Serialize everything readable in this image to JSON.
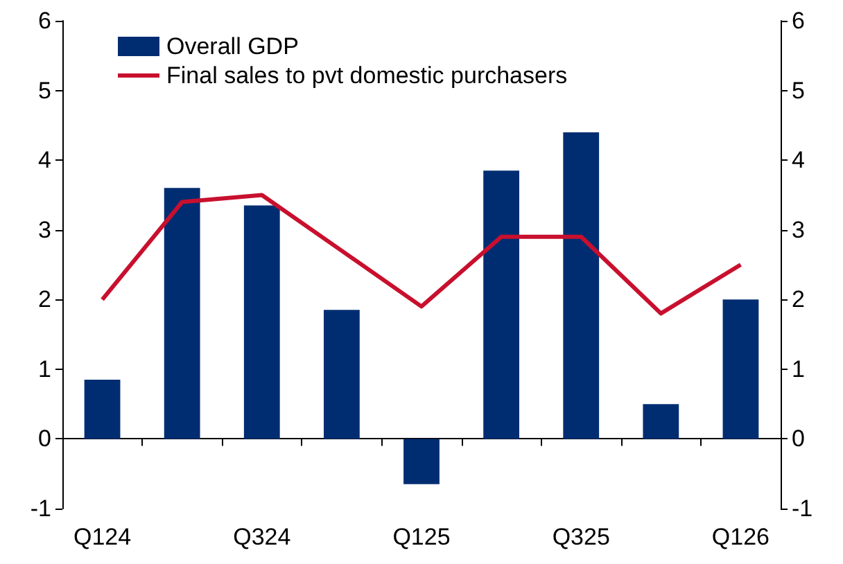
{
  "chart_data": {
    "type": "bar",
    "categories": [
      "Q124",
      null,
      "Q324",
      null,
      "Q125",
      null,
      "Q325",
      null,
      "Q126"
    ],
    "series": [
      {
        "name": "Overall GDP",
        "color": "#002d72",
        "values": [
          0.85,
          3.6,
          3.35,
          1.85,
          -0.65,
          3.85,
          4.4,
          0.5,
          2.0
        ]
      },
      {
        "name": "Final sales to pvt domestic purchasers",
        "type": "line",
        "color": "#c8102e",
        "marker": "none",
        "values": [
          2.0,
          3.4,
          3.5,
          2.7,
          1.9,
          2.9,
          2.9,
          1.8,
          2.5
        ]
      }
    ],
    "ylim": [
      -1,
      6
    ],
    "yticks": [
      -1,
      0,
      1,
      2,
      3,
      4,
      5,
      6
    ],
    "y2lim": [
      -1,
      6
    ],
    "y2ticks": [
      -1,
      0,
      1,
      2,
      3,
      4,
      5,
      6
    ],
    "legend": "top left"
  }
}
